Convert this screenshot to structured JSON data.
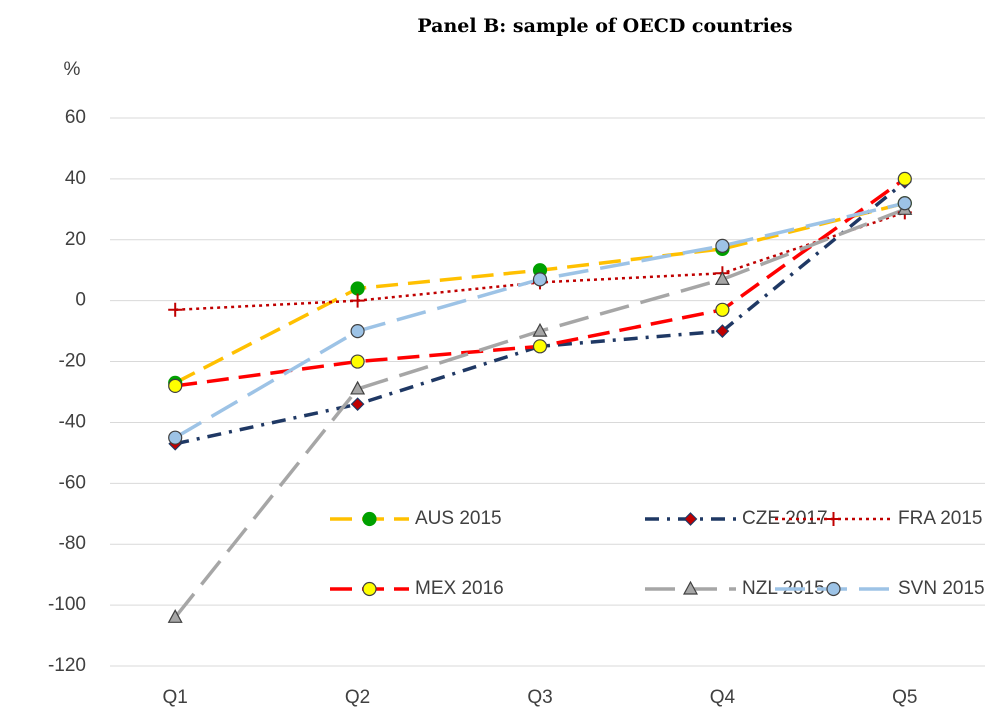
{
  "chart_data": {
    "type": "line",
    "title": "Panel B: sample of OECD countries",
    "y_label": "%",
    "categories": [
      "Q1",
      "Q2",
      "Q3",
      "Q4",
      "Q5"
    ],
    "series": [
      {
        "name": "AUS 2015",
        "color": "#ffc000",
        "marker": "circle",
        "marker_color": "#00a000",
        "linestyle": "dashed",
        "values": [
          -27,
          4,
          10,
          17,
          32
        ]
      },
      {
        "name": "CZE 2017",
        "color": "#1f3864",
        "marker": "diamond",
        "marker_color": "#c00000",
        "linestyle": "dashdot",
        "values": [
          -47,
          -34,
          -15,
          -10,
          39
        ]
      },
      {
        "name": "FRA 2015",
        "color": "#c00000",
        "marker": "plus",
        "marker_color": "#c00000",
        "linestyle": "dotted",
        "values": [
          -3,
          0,
          6,
          9,
          29
        ]
      },
      {
        "name": "MEX 2016",
        "color": "#ff0000",
        "marker": "circle",
        "marker_color": "#ffff00",
        "linestyle": "dashed",
        "values": [
          -28,
          -20,
          -15,
          -3,
          40
        ]
      },
      {
        "name": "NZL 2015",
        "color": "#a6a6a6",
        "marker": "triangle",
        "marker_color": "#a6a6a6",
        "linestyle": "longdash",
        "values": [
          -104,
          -29,
          -10,
          7,
          30
        ]
      },
      {
        "name": "SVN 2015",
        "color": "#9dc3e6",
        "marker": "circle",
        "marker_color": "#9dc3e6",
        "linestyle": "longdash",
        "values": [
          -45,
          -10,
          7,
          18,
          32
        ]
      }
    ],
    "ylim": [
      -120,
      60
    ],
    "yticks": [
      -120,
      -100,
      -80,
      -60,
      -40,
      -20,
      0,
      20,
      40,
      60
    ],
    "grid": true,
    "legend": "lower right"
  }
}
